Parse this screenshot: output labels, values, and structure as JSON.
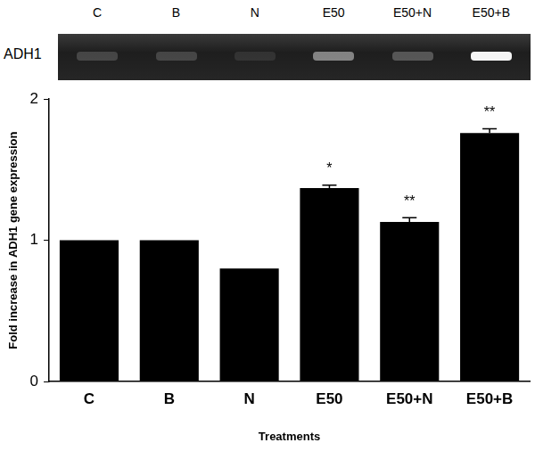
{
  "gel": {
    "label": "ADH1",
    "lanes": [
      "C",
      "B",
      "N",
      "E50",
      "E50+N",
      "E50+B"
    ]
  },
  "chart_data": {
    "type": "bar",
    "categories": [
      "C",
      "B",
      "N",
      "E50",
      "E50+N",
      "E50+B"
    ],
    "values": [
      1.0,
      1.0,
      0.8,
      1.37,
      1.13,
      1.76
    ],
    "error": [
      null,
      null,
      null,
      0.02,
      0.03,
      0.03
    ],
    "annotations": [
      null,
      null,
      null,
      "*",
      "**",
      "**"
    ],
    "x_label": "Treatments",
    "y_label": "Fold increase in ADH1 gene expression",
    "color": "#000000",
    "ylim": [
      0,
      2
    ],
    "yticks": [
      0,
      1,
      2
    ],
    "grid": false
  }
}
